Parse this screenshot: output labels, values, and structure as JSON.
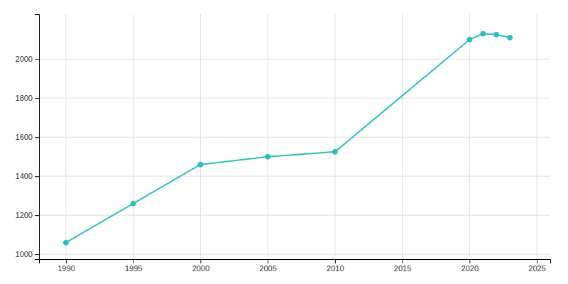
{
  "chart_data": {
    "type": "line",
    "x": [
      1990,
      1995,
      2000,
      2005,
      2010,
      2020,
      2021,
      2022,
      2023
    ],
    "values": [
      1060,
      1260,
      1460,
      1500,
      1525,
      2100,
      2130,
      2125,
      2110
    ],
    "color": "#2abfbf",
    "marker": "circle",
    "xlim": [
      1988,
      2026
    ],
    "ylim": [
      975,
      2230
    ],
    "xticks": [
      1990,
      1995,
      2000,
      2005,
      2010,
      2015,
      2020,
      2025
    ],
    "yticks": [
      1000,
      1200,
      1400,
      1600,
      1800,
      2000
    ],
    "grid": true
  }
}
